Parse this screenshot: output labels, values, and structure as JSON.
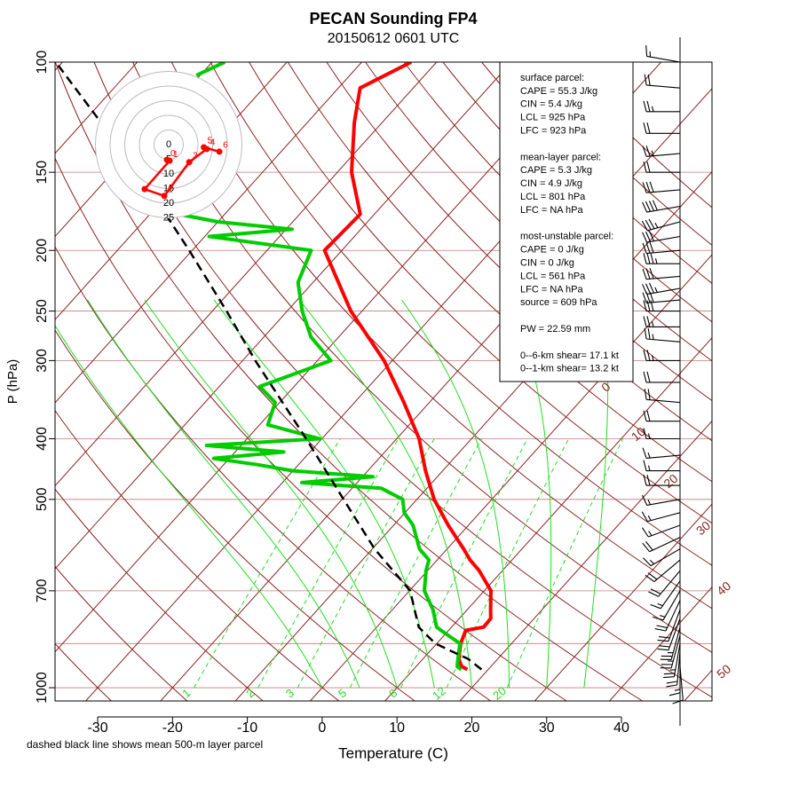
{
  "chart_data": {
    "type": "skewt",
    "title": "PECAN Sounding FP4",
    "subtitle": "20150612 0601 UTC",
    "x_label": "Temperature (C)",
    "y_label": "P (hPa)",
    "note": "dashed black line shows mean 500-m layer parcel",
    "xlim": [
      -35.7,
      52.1
    ],
    "xticks": [
      -30,
      -20,
      -10,
      0,
      10,
      20,
      30,
      40
    ],
    "ylim": [
      1050,
      100
    ],
    "yticks": [
      100,
      150,
      200,
      250,
      300,
      400,
      500,
      700,
      1000
    ],
    "log_y": true,
    "extra_isobars": [
      850
    ],
    "labeled_isotherms": [
      0,
      10,
      20,
      30,
      40,
      50
    ],
    "isotherms": [
      -120,
      -110,
      -100,
      -90,
      -80,
      -70,
      -60,
      -50,
      -40,
      -30,
      -20,
      -10
    ],
    "dry_adiabats": [
      -40,
      -30,
      -20,
      -10,
      0,
      10,
      20,
      30,
      40,
      50,
      60,
      70,
      80,
      90,
      100,
      110,
      120,
      130,
      140,
      150,
      160,
      170
    ],
    "moist_adiabats": [
      0,
      5,
      10,
      15,
      20,
      25,
      30,
      35
    ],
    "moist_adiabat_plim": [
      1000,
      240
    ],
    "mixing_ratios": [
      1,
      2,
      3,
      5,
      8,
      12,
      20
    ],
    "mixing_ratio_plim": [
      1000,
      400
    ],
    "series": [
      {
        "color": "#ff0000",
        "width": 4,
        "dashed": false,
        "pressure": [
          935,
          925,
          900,
          850,
          810,
          800,
          775,
          750,
          700,
          650,
          625,
          600,
          550,
          500,
          450,
          400,
          350,
          300,
          250,
          200,
          175,
          150,
          125,
          110,
          100
        ],
        "values": [
          17.2,
          16.1,
          14.8,
          13.2,
          12.3,
          14.3,
          14.2,
          13.1,
          10.9,
          6.9,
          4.4,
          2.2,
          -2.7,
          -7.7,
          -12.3,
          -17.0,
          -23.4,
          -31.1,
          -41.5,
          -52.3,
          -51.9,
          -58.1,
          -63.7,
          -67.1,
          -63.4
        ]
      },
      {
        "color": "#00cc00",
        "width": 4,
        "dashed": false,
        "pressure": [
          935,
          925,
          900,
          850,
          810,
          800,
          750,
          700,
          650,
          625,
          600,
          550,
          525,
          500,
          480,
          470,
          460,
          450,
          440,
          430,
          420,
          410,
          400,
          380,
          350,
          330,
          300,
          275,
          250,
          225,
          200,
          190,
          185,
          180,
          175,
          150,
          105,
          100
        ],
        "values": [
          16.4,
          15.5,
          14.7,
          13.1,
          9.0,
          8.0,
          5.4,
          2.0,
          -0.2,
          -1.1,
          -3.7,
          -7.4,
          -10.1,
          -11.9,
          -16.1,
          -27.4,
          -18.6,
          -30.0,
          -35.5,
          -42.1,
          -33.5,
          -44.6,
          -30.3,
          -38.9,
          -40.6,
          -44.6,
          -38.2,
          -43.7,
          -48.0,
          -52.0,
          -54.1,
          -69.4,
          -59.2,
          -70.0,
          -76.2,
          null,
          -90.5,
          -88.3
        ]
      },
      {
        "color": "#000000",
        "width": 2.5,
        "dashed": true,
        "pressure": [
          935,
          900,
          850,
          800,
          700,
          600,
          500,
          400,
          300,
          250,
          200,
          150,
          100
        ],
        "values": [
          19.1,
          16.1,
          9.8,
          5.6,
          0.1,
          -9.7,
          -19.8,
          -32.1,
          -48.3,
          -58.1,
          -70.4,
          -86.6,
          -110.9
        ]
      }
    ],
    "hodograph": {
      "rings": [
        0,
        5,
        10,
        15,
        20,
        25
      ],
      "color": "#ff0000",
      "u": [
        -0.6,
        0.3,
        -8.2,
        -1.5,
        7.0,
        13.0,
        12.0,
        17.3
      ],
      "v": [
        -5.2,
        -5.5,
        -15.2,
        -17.5,
        -6.0,
        -1.5,
        -0.9,
        -2.4
      ],
      "labels": [
        "0",
        "1",
        null,
        "2",
        "3",
        "4",
        "5",
        "6"
      ]
    },
    "barbs": {
      "pressure": [
        100,
        110,
        120,
        130,
        140,
        150,
        160,
        170,
        180,
        190,
        200,
        210,
        220,
        230,
        240,
        250,
        265,
        280,
        300,
        325,
        350,
        375,
        400,
        425,
        450,
        475,
        500,
        525,
        550,
        575,
        600,
        625,
        650,
        675,
        700,
        725,
        750,
        775,
        800,
        825,
        850,
        875,
        900,
        925
      ],
      "direction": [
        280,
        275,
        270,
        270,
        265,
        270,
        265,
        260,
        255,
        260,
        265,
        270,
        265,
        260,
        265,
        270,
        270,
        275,
        270,
        270,
        275,
        270,
        270,
        265,
        270,
        270,
        260,
        255,
        250,
        245,
        240,
        230,
        220,
        215,
        210,
        205,
        200,
        200,
        195,
        195,
        190,
        185,
        180,
        175
      ],
      "speed": [
        15,
        20,
        25,
        20,
        25,
        20,
        30,
        40,
        35,
        30,
        30,
        35,
        30,
        35,
        30,
        30,
        25,
        25,
        25,
        20,
        20,
        20,
        15,
        15,
        15,
        20,
        15,
        15,
        15,
        20,
        15,
        20,
        20,
        15,
        15,
        20,
        20,
        20,
        25,
        25,
        25,
        20,
        15,
        10
      ]
    },
    "stats": [
      [
        "surface parcel:",
        "CAPE = 55.3 J/kg",
        "CIN = 5.4 J/kg",
        "LCL = 925 hPa",
        "LFC = 923 hPa"
      ],
      [
        "mean-layer parcel:",
        "CAPE = 5.3 J/kg",
        "CIN = 4.9 J/kg",
        "LCL = 801 hPa",
        "LFC = NA hPa"
      ],
      [
        "most-unstable parcel:",
        "CAPE = 0 J/kg",
        "CIN = 0 J/kg",
        "LCL = 561 hPa",
        "LFC = NA hPa",
        "source = 609 hPa"
      ],
      [
        "PW =  22.59 mm"
      ],
      [
        "0--6-km shear= 17.1 kt",
        "0--1-km shear= 13.2 kt"
      ]
    ]
  }
}
